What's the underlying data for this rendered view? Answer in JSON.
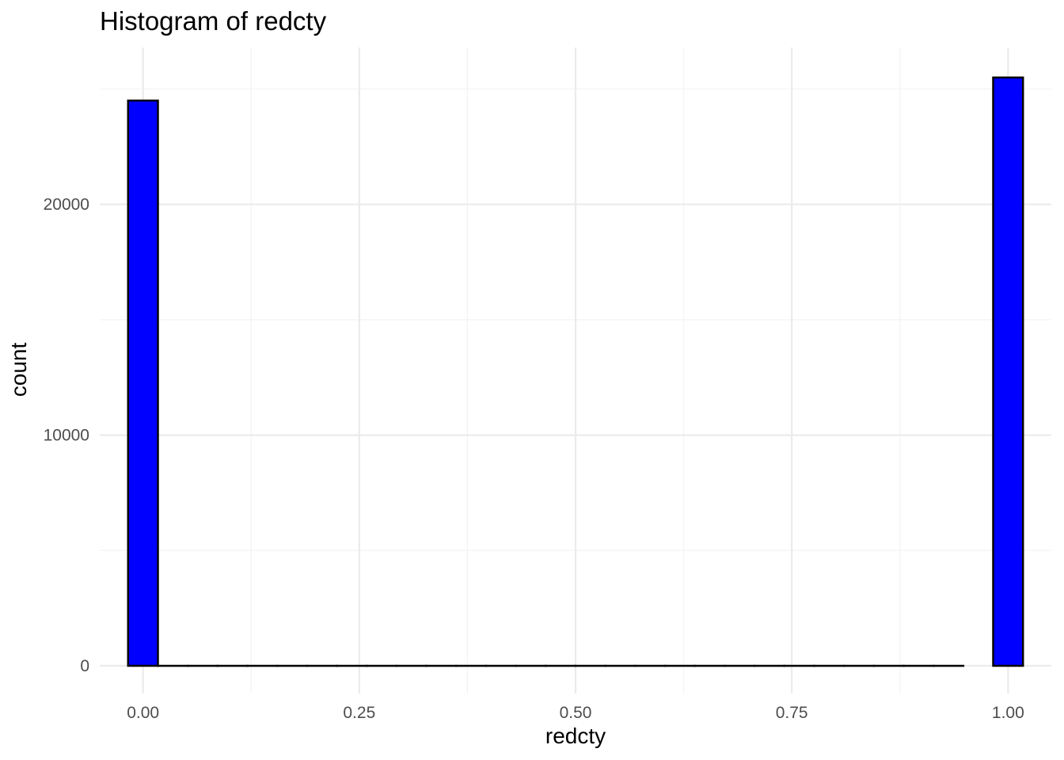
{
  "chart_data": {
    "type": "bar",
    "title": "Histogram of redcty",
    "xlabel": "redcty",
    "ylabel": "count",
    "bin_width": 0.0345,
    "bins": [
      {
        "x": 0.0,
        "count": 24500
      },
      {
        "x": 0.0345,
        "count": 0
      },
      {
        "x": 0.069,
        "count": 0
      },
      {
        "x": 0.1034,
        "count": 0
      },
      {
        "x": 0.1379,
        "count": 0
      },
      {
        "x": 0.1724,
        "count": 0
      },
      {
        "x": 0.2069,
        "count": 0
      },
      {
        "x": 0.2414,
        "count": 0
      },
      {
        "x": 0.2759,
        "count": 0
      },
      {
        "x": 0.3103,
        "count": 0
      },
      {
        "x": 0.3448,
        "count": 0
      },
      {
        "x": 0.3793,
        "count": 0
      },
      {
        "x": 0.4138,
        "count": 0
      },
      {
        "x": 0.4483,
        "count": 0
      },
      {
        "x": 0.4828,
        "count": 0
      },
      {
        "x": 0.5172,
        "count": 0
      },
      {
        "x": 0.5517,
        "count": 0
      },
      {
        "x": 0.5862,
        "count": 0
      },
      {
        "x": 0.6207,
        "count": 0
      },
      {
        "x": 0.6552,
        "count": 0
      },
      {
        "x": 0.6897,
        "count": 0
      },
      {
        "x": 0.7241,
        "count": 0
      },
      {
        "x": 0.7586,
        "count": 0
      },
      {
        "x": 0.7931,
        "count": 0
      },
      {
        "x": 0.8276,
        "count": 0
      },
      {
        "x": 0.8621,
        "count": 0
      },
      {
        "x": 0.8966,
        "count": 0
      },
      {
        "x": 0.931,
        "count": 0
      },
      {
        "x": 1.0,
        "count": 25500
      }
    ],
    "xlim": [
      -0.05,
      1.05
    ],
    "ylim": [
      -1200,
      26800
    ],
    "x_ticks": [
      0.0,
      0.25,
      0.5,
      0.75,
      1.0
    ],
    "x_tick_labels": [
      "0.00",
      "0.25",
      "0.50",
      "0.75",
      "1.00"
    ],
    "y_ticks": [
      0,
      10000,
      20000
    ],
    "y_tick_labels": [
      "0",
      "10000",
      "20000"
    ],
    "bar_fill": "#0000ff",
    "bar_outline": "#000000",
    "grid": true,
    "legend": "none"
  }
}
